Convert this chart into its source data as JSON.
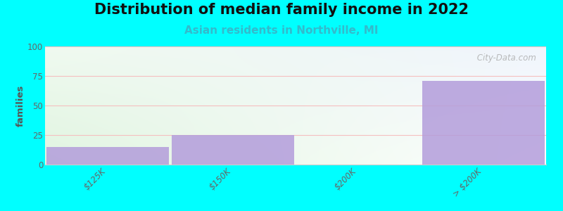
{
  "title": "Distribution of median family income in 2022",
  "subtitle": "Asian residents in Northville, MI",
  "categories": [
    "$125K",
    "$150K",
    "$200K",
    "> $200K"
  ],
  "values": [
    15,
    25,
    0,
    71
  ],
  "bar_color": "#b39ddb",
  "bar_alpha": 0.85,
  "ylabel": "families",
  "ylim": [
    0,
    100
  ],
  "yticks": [
    0,
    25,
    50,
    75,
    100
  ],
  "background_color": "#00ffff",
  "plot_bg_color_topleft": "#e8f5e9",
  "plot_bg_color_topright": "#e8f0f8",
  "plot_bg_color_bottom": "#ffffff",
  "grid_color": "#f5c0c0",
  "title_fontsize": 15,
  "subtitle_fontsize": 11,
  "subtitle_color": "#33bbcc",
  "watermark": " City-Data.com",
  "watermark_color": "#aaaaaa"
}
